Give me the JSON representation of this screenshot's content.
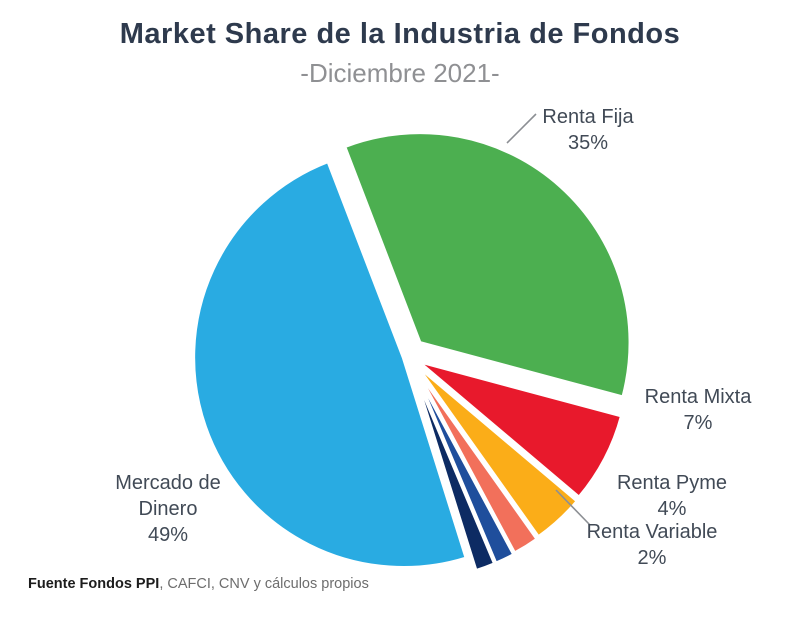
{
  "header": {
    "title": "Market Share de la Industria de Fondos",
    "subtitle": "-Diciembre 2021-"
  },
  "chart_data": {
    "type": "pie",
    "title": "Market Share de la Industria de Fondos",
    "subtitle": "-Diciembre 2021-",
    "start_angle_deg": -21,
    "legend_position": "none",
    "label_style": "callouts-with-percent",
    "slices": [
      {
        "label": "Renta Fija",
        "value": 35,
        "pct_label": "35%",
        "color": "#4CAF50",
        "explode": 18
      },
      {
        "label": "Renta Mixta",
        "value": 7,
        "pct_label": "7%",
        "color": "#E8192C",
        "explode": 12
      },
      {
        "label": "Renta Pyme",
        "value": 4,
        "pct_label": "4%",
        "color": "#FBAD18",
        "explode": 13
      },
      {
        "label": "Renta Variable",
        "value": 2,
        "pct_label": "2%",
        "color": "#F2705B",
        "explode": 14
      },
      {
        "label": "",
        "value": 1.5,
        "pct_label": "",
        "color": "#1F4E9C",
        "explode": 15
      },
      {
        "label": "",
        "value": 1.5,
        "pct_label": "",
        "color": "#0D2B63",
        "explode": 15
      },
      {
        "label": "Mercado de Dinero",
        "value": 49,
        "pct_label": "49%",
        "color": "#29ABE2",
        "explode": 5
      }
    ]
  },
  "callouts": [
    {
      "name": "Renta Fija",
      "pct": "35%"
    },
    {
      "name": "Renta Mixta",
      "pct": "7%"
    },
    {
      "name": "Renta Pyme",
      "pct": "4%"
    },
    {
      "name": "Renta Variable",
      "pct": "2%"
    },
    {
      "name": "Mercado de Dinero",
      "pct": "49%"
    }
  ],
  "footer": {
    "source_bold": "Fuente Fondos PPI",
    "source_rest": ", CAFCI, CNV y cálculos propios"
  }
}
